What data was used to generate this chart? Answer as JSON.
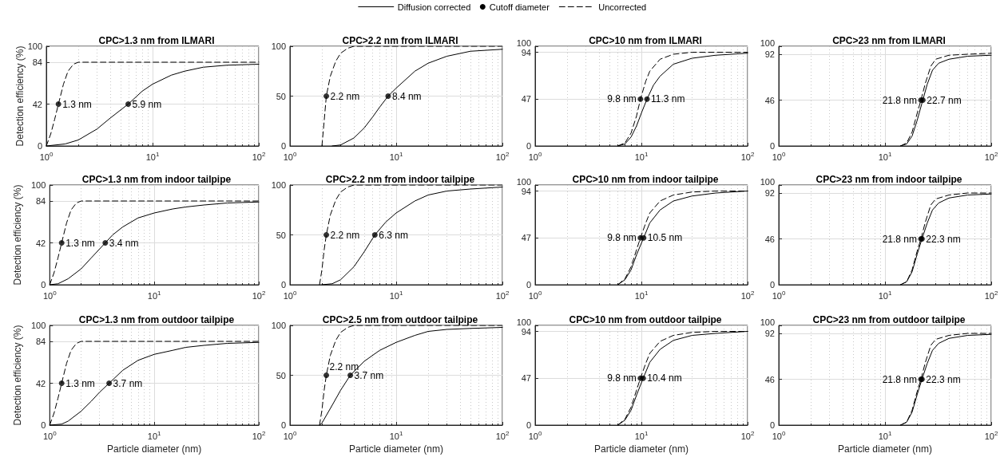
{
  "chart_data": [
    {
      "type": "line",
      "title": "CPC>1.3 nm from ILMARI",
      "ylabel": "Detection efficiency (%)",
      "log": "x",
      "xlim": [
        1,
        100
      ],
      "xticks": [
        {
          "value": 1,
          "label": "10$^{0}$"
        },
        {
          "value": 2,
          "label": null
        },
        {
          "value": 3,
          "label": null
        },
        {
          "value": 4,
          "label": null
        },
        {
          "value": 5,
          "label": null
        },
        {
          "value": 6,
          "label": null
        },
        {
          "value": 7,
          "label": null
        },
        {
          "value": 8,
          "label": null
        },
        {
          "value": 9,
          "label": null
        },
        {
          "value": 10,
          "label": "10$^{1}$"
        },
        {
          "value": 20,
          "label": null
        },
        {
          "value": 30,
          "label": null
        },
        {
          "value": 40,
          "label": null
        },
        {
          "value": 50,
          "label": null
        },
        {
          "value": 60,
          "label": null
        },
        {
          "value": 70,
          "label": null
        },
        {
          "value": 80,
          "label": null
        },
        {
          "value": 90,
          "label": null
        },
        {
          "value": 100,
          "label": "10$^{2}$"
        }
      ],
      "ylim": [
        0,
        100
      ],
      "yticks": [
        0,
        42,
        84,
        100
      ],
      "grid": true,
      "legend": "top",
      "annotations": [
        {
          "text": "1.3 nm",
          "x": 1.3,
          "y": 42
        },
        {
          "text": "5.9 nm",
          "x": 5.9,
          "y": 42
        }
      ],
      "series": [
        {
          "name": "Diffusion corrected",
          "type": "line",
          "color": "#000000",
          "line_style": "solid",
          "marker": "none",
          "x": [
            1,
            1.5,
            2,
            3,
            4,
            5.9,
            8,
            10,
            15,
            20,
            30,
            50,
            100
          ],
          "values": [
            0,
            2,
            6,
            17,
            28,
            42,
            55,
            62,
            71,
            75,
            79,
            81,
            82
          ]
        },
        {
          "name": "Cutoff diameter",
          "type": "scatter",
          "color": "#000000",
          "marker": "circle",
          "x": [
            1.3,
            5.9
          ],
          "values": [
            42,
            42
          ]
        },
        {
          "name": "Uncorrected",
          "type": "line",
          "color": "#000000",
          "line_style": "dashed",
          "marker": "none",
          "x": [
            1,
            1.1,
            1.2,
            1.3,
            1.45,
            1.6,
            1.8,
            2,
            3,
            10,
            100
          ],
          "values": [
            0,
            12,
            27,
            42,
            62,
            75,
            82,
            84,
            84,
            84,
            84
          ]
        }
      ]
    },
    {
      "type": "line",
      "title": "CPC>2.2 nm from ILMARI",
      "log": "x",
      "xlim": [
        1,
        100
      ],
      "xticks": [
        {
          "value": 1,
          "label": "10$^{0}$"
        },
        {
          "value": 2,
          "label": null
        },
        {
          "value": 3,
          "label": null
        },
        {
          "value": 4,
          "label": null
        },
        {
          "value": 5,
          "label": null
        },
        {
          "value": 6,
          "label": null
        },
        {
          "value": 7,
          "label": null
        },
        {
          "value": 8,
          "label": null
        },
        {
          "value": 9,
          "label": null
        },
        {
          "value": 10,
          "label": "10$^{1}$"
        },
        {
          "value": 20,
          "label": null
        },
        {
          "value": 30,
          "label": null
        },
        {
          "value": 40,
          "label": null
        },
        {
          "value": 50,
          "label": null
        },
        {
          "value": 60,
          "label": null
        },
        {
          "value": 70,
          "label": null
        },
        {
          "value": 80,
          "label": null
        },
        {
          "value": 90,
          "label": null
        },
        {
          "value": 100,
          "label": "10$^{2}$"
        }
      ],
      "ylim": [
        0,
        100
      ],
      "yticks": [
        0,
        50,
        100
      ],
      "grid": true,
      "annotations": [
        {
          "text": "2.2 nm",
          "x": 2.2,
          "y": 50
        },
        {
          "text": "8.4 nm",
          "x": 8.4,
          "y": 50
        }
      ],
      "series": [
        {
          "type": "line",
          "color": "#000000",
          "line_style": "solid",
          "marker": "none",
          "x": [
            2.5,
            3,
            4,
            5,
            6,
            7,
            8.4,
            10,
            15,
            20,
            30,
            50,
            100
          ],
          "values": [
            0,
            1,
            8,
            18,
            29,
            39,
            50,
            58,
            75,
            83,
            90,
            95,
            97
          ]
        },
        {
          "type": "scatter",
          "color": "#000000",
          "marker": "circle",
          "x": [
            2.2,
            8.4
          ],
          "values": [
            50,
            50
          ]
        },
        {
          "type": "line",
          "color": "#000000",
          "line_style": "dashed",
          "marker": "none",
          "x": [
            2,
            2.1,
            2.2,
            2.4,
            2.7,
            3,
            3.5,
            4,
            100
          ],
          "values": [
            0,
            25,
            50,
            70,
            85,
            93,
            98,
            100,
            100
          ]
        }
      ]
    },
    {
      "type": "line",
      "title": "CPC>10 nm from ILMARI",
      "log": "x",
      "xlim": [
        1,
        100
      ],
      "xticks": [
        {
          "value": 1,
          "label": "10$^{0}$"
        },
        {
          "value": 2,
          "label": null
        },
        {
          "value": 3,
          "label": null
        },
        {
          "value": 4,
          "label": null
        },
        {
          "value": 5,
          "label": null
        },
        {
          "value": 6,
          "label": null
        },
        {
          "value": 7,
          "label": null
        },
        {
          "value": 8,
          "label": null
        },
        {
          "value": 9,
          "label": null
        },
        {
          "value": 10,
          "label": "10$^{1}$"
        },
        {
          "value": 20,
          "label": null
        },
        {
          "value": 30,
          "label": null
        },
        {
          "value": 40,
          "label": null
        },
        {
          "value": 50,
          "label": null
        },
        {
          "value": 60,
          "label": null
        },
        {
          "value": 70,
          "label": null
        },
        {
          "value": 80,
          "label": null
        },
        {
          "value": 90,
          "label": null
        },
        {
          "value": 100,
          "label": "10$^{2}$"
        }
      ],
      "ylim": [
        0,
        100
      ],
      "yticks": [
        0,
        47,
        94,
        100
      ],
      "grid": true,
      "annotations": [
        {
          "text": "9.8 nm",
          "x": 9.8,
          "y": 47
        },
        {
          "text": "11.3 nm",
          "x": 11.3,
          "y": 47
        }
      ],
      "series": [
        {
          "type": "line",
          "color": "#000000",
          "line_style": "solid",
          "marker": "none",
          "x": [
            6,
            7,
            8,
            9,
            10,
            11.3,
            13,
            15,
            20,
            30,
            50,
            100
          ],
          "values": [
            0,
            2,
            9,
            20,
            33,
            47,
            61,
            70,
            82,
            88,
            91,
            93
          ]
        },
        {
          "type": "scatter",
          "color": "#000000",
          "marker": "circle",
          "x": [
            9.8,
            11.3
          ],
          "values": [
            47,
            47
          ]
        },
        {
          "type": "line",
          "color": "#000000",
          "line_style": "dashed",
          "marker": "none",
          "x": [
            6,
            7,
            8,
            9,
            9.8,
            11,
            12,
            15,
            20,
            30,
            50,
            100
          ],
          "values": [
            0,
            3,
            13,
            30,
            47,
            65,
            75,
            87,
            92,
            94,
            94,
            94
          ]
        }
      ]
    },
    {
      "type": "line",
      "title": "CPC>23 nm from ILMARI",
      "log": "x",
      "xlim": [
        1,
        100
      ],
      "xticks": [
        {
          "value": 1,
          "label": "10$^{0}$"
        },
        {
          "value": 2,
          "label": null
        },
        {
          "value": 3,
          "label": null
        },
        {
          "value": 4,
          "label": null
        },
        {
          "value": 5,
          "label": null
        },
        {
          "value": 6,
          "label": null
        },
        {
          "value": 7,
          "label": null
        },
        {
          "value": 8,
          "label": null
        },
        {
          "value": 9,
          "label": null
        },
        {
          "value": 10,
          "label": "10$^{1}$"
        },
        {
          "value": 20,
          "label": null
        },
        {
          "value": 30,
          "label": null
        },
        {
          "value": 40,
          "label": null
        },
        {
          "value": 50,
          "label": null
        },
        {
          "value": 60,
          "label": null
        },
        {
          "value": 70,
          "label": null
        },
        {
          "value": 80,
          "label": null
        },
        {
          "value": 90,
          "label": null
        },
        {
          "value": 100,
          "label": "10$^{2}$"
        }
      ],
      "ylim": [
        0,
        100
      ],
      "yticks": [
        0,
        46,
        92,
        100
      ],
      "grid": true,
      "annotations": [
        {
          "text": "21.8 nm",
          "x": 21.8,
          "y": 46
        },
        {
          "text": "22.7 nm",
          "x": 22.7,
          "y": 46
        }
      ],
      "series": [
        {
          "type": "line",
          "color": "#000000",
          "line_style": "solid",
          "marker": "none",
          "x": [
            14,
            16,
            18,
            20,
            22.7,
            25,
            28,
            32,
            40,
            60,
            100
          ],
          "values": [
            0,
            2,
            10,
            25,
            46,
            62,
            76,
            83,
            87,
            90,
            91
          ]
        },
        {
          "type": "scatter",
          "color": "#000000",
          "marker": "circle",
          "x": [
            21.8,
            22.7
          ],
          "values": [
            46,
            46
          ]
        },
        {
          "type": "line",
          "color": "#000000",
          "line_style": "dashed",
          "marker": "none",
          "x": [
            14,
            16,
            18,
            20,
            21.8,
            24,
            27,
            30,
            40,
            60,
            100
          ],
          "values": [
            0,
            3,
            14,
            32,
            46,
            63,
            80,
            87,
            91,
            92,
            93
          ]
        }
      ]
    },
    {
      "type": "line",
      "title": "CPC>1.3 nm from indoor tailpipe",
      "ylabel": "Detection efficiency (%)",
      "log": "x",
      "xlim": [
        1,
        100
      ],
      "xticks": [
        {
          "value": 1,
          "label": "10$^{0}$"
        },
        {
          "value": 2,
          "label": null
        },
        {
          "value": 3,
          "label": null
        },
        {
          "value": 4,
          "label": null
        },
        {
          "value": 5,
          "label": null
        },
        {
          "value": 6,
          "label": null
        },
        {
          "value": 7,
          "label": null
        },
        {
          "value": 8,
          "label": null
        },
        {
          "value": 9,
          "label": null
        },
        {
          "value": 10,
          "label": "10$^{1}$"
        },
        {
          "value": 20,
          "label": null
        },
        {
          "value": 30,
          "label": null
        },
        {
          "value": 40,
          "label": null
        },
        {
          "value": 50,
          "label": null
        },
        {
          "value": 60,
          "label": null
        },
        {
          "value": 70,
          "label": null
        },
        {
          "value": 80,
          "label": null
        },
        {
          "value": 90,
          "label": null
        },
        {
          "value": 100,
          "label": "10$^{2}$"
        }
      ],
      "ylim": [
        0,
        100
      ],
      "yticks": [
        0,
        42,
        84,
        100
      ],
      "grid": true,
      "annotations": [
        {
          "text": "1.3 nm",
          "x": 1.3,
          "y": 42
        },
        {
          "text": "3.4 nm",
          "x": 3.4,
          "y": 42
        }
      ],
      "series": [
        {
          "type": "line",
          "color": "#000000",
          "line_style": "solid",
          "marker": "none",
          "x": [
            1,
            1.2,
            1.5,
            2,
            2.5,
            3.4,
            4,
            5,
            7,
            10,
            15,
            20,
            30,
            50,
            100
          ],
          "values": [
            0,
            1,
            6,
            16,
            27,
            42,
            50,
            58,
            67,
            72,
            76,
            78,
            80,
            82,
            83
          ]
        },
        {
          "type": "scatter",
          "color": "#000000",
          "marker": "circle",
          "x": [
            1.3,
            3.4
          ],
          "values": [
            42,
            42
          ]
        },
        {
          "type": "line",
          "color": "#000000",
          "line_style": "dashed",
          "marker": "none",
          "x": [
            1,
            1.1,
            1.2,
            1.3,
            1.45,
            1.6,
            1.8,
            2,
            3,
            10,
            100
          ],
          "values": [
            0,
            12,
            27,
            42,
            62,
            75,
            82,
            84,
            84,
            84,
            84
          ]
        }
      ]
    },
    {
      "type": "line",
      "title": "CPC>2.2 nm from indoor tailpipe",
      "log": "x",
      "xlim": [
        1,
        100
      ],
      "xticks": [
        {
          "value": 1,
          "label": "10$^{0}$"
        },
        {
          "value": 2,
          "label": null
        },
        {
          "value": 3,
          "label": null
        },
        {
          "value": 4,
          "label": null
        },
        {
          "value": 5,
          "label": null
        },
        {
          "value": 6,
          "label": null
        },
        {
          "value": 7,
          "label": null
        },
        {
          "value": 8,
          "label": null
        },
        {
          "value": 9,
          "label": null
        },
        {
          "value": 10,
          "label": "10$^{1}$"
        },
        {
          "value": 20,
          "label": null
        },
        {
          "value": 30,
          "label": null
        },
        {
          "value": 40,
          "label": null
        },
        {
          "value": 50,
          "label": null
        },
        {
          "value": 60,
          "label": null
        },
        {
          "value": 70,
          "label": null
        },
        {
          "value": 80,
          "label": null
        },
        {
          "value": 90,
          "label": null
        },
        {
          "value": 100,
          "label": "10$^{2}$"
        }
      ],
      "ylim": [
        0,
        100
      ],
      "yticks": [
        0,
        50,
        100
      ],
      "grid": true,
      "annotations": [
        {
          "text": "2.2 nm",
          "x": 2.2,
          "y": 50
        },
        {
          "text": "6.3 nm",
          "x": 6.3,
          "y": 50
        }
      ],
      "series": [
        {
          "type": "line",
          "color": "#000000",
          "line_style": "solid",
          "marker": "none",
          "x": [
            2,
            2.5,
            3,
            4,
            5,
            6.3,
            8,
            10,
            15,
            20,
            30,
            50,
            100
          ],
          "values": [
            0,
            1,
            5,
            18,
            33,
            50,
            63,
            72,
            84,
            90,
            94,
            96,
            98
          ]
        },
        {
          "type": "scatter",
          "color": "#000000",
          "marker": "circle",
          "x": [
            2.2,
            6.3
          ],
          "values": [
            50,
            50
          ]
        },
        {
          "type": "line",
          "color": "#000000",
          "line_style": "dashed",
          "marker": "none",
          "x": [
            1.9,
            2,
            2.1,
            2.2,
            2.4,
            2.7,
            3,
            3.5,
            4,
            100
          ],
          "values": [
            0,
            15,
            35,
            50,
            70,
            85,
            93,
            98,
            100,
            100
          ]
        }
      ]
    },
    {
      "type": "line",
      "title": "CPC>10 nm from indoor tailpipe",
      "log": "x",
      "xlim": [
        1,
        100
      ],
      "xticks": [
        {
          "value": 1,
          "label": "10$^{0}$"
        },
        {
          "value": 2,
          "label": null
        },
        {
          "value": 3,
          "label": null
        },
        {
          "value": 4,
          "label": null
        },
        {
          "value": 5,
          "label": null
        },
        {
          "value": 6,
          "label": null
        },
        {
          "value": 7,
          "label": null
        },
        {
          "value": 8,
          "label": null
        },
        {
          "value": 9,
          "label": null
        },
        {
          "value": 10,
          "label": "10$^{1}$"
        },
        {
          "value": 20,
          "label": null
        },
        {
          "value": 30,
          "label": null
        },
        {
          "value": 40,
          "label": null
        },
        {
          "value": 50,
          "label": null
        },
        {
          "value": 60,
          "label": null
        },
        {
          "value": 70,
          "label": null
        },
        {
          "value": 80,
          "label": null
        },
        {
          "value": 90,
          "label": null
        },
        {
          "value": 100,
          "label": "10$^{2}$"
        }
      ],
      "ylim": [
        0,
        100
      ],
      "yticks": [
        0,
        47,
        94,
        100
      ],
      "grid": true,
      "annotations": [
        {
          "text": "9.8 nm",
          "x": 9.8,
          "y": 47
        },
        {
          "text": "10.5 nm",
          "x": 10.5,
          "y": 47
        }
      ],
      "series": [
        {
          "type": "line",
          "color": "#000000",
          "line_style": "solid",
          "marker": "none",
          "x": [
            6,
            7,
            8,
            9,
            10.5,
            12,
            15,
            20,
            30,
            50,
            100
          ],
          "values": [
            0,
            5,
            15,
            30,
            47,
            62,
            75,
            84,
            89,
            92,
            94
          ]
        },
        {
          "type": "scatter",
          "color": "#000000",
          "marker": "circle",
          "x": [
            9.8,
            10.5
          ],
          "values": [
            47,
            47
          ]
        },
        {
          "type": "line",
          "color": "#000000",
          "line_style": "dashed",
          "marker": "none",
          "x": [
            6,
            7,
            8,
            9,
            9.8,
            11,
            12,
            15,
            20,
            30,
            50,
            100
          ],
          "values": [
            0,
            6,
            18,
            35,
            47,
            62,
            72,
            84,
            90,
            93,
            94,
            94
          ]
        }
      ]
    },
    {
      "type": "line",
      "title": "CPC>23 nm from indoor tailpipe",
      "log": "x",
      "xlim": [
        1,
        100
      ],
      "xticks": [
        {
          "value": 1,
          "label": "10$^{0}$"
        },
        {
          "value": 2,
          "label": null
        },
        {
          "value": 3,
          "label": null
        },
        {
          "value": 4,
          "label": null
        },
        {
          "value": 5,
          "label": null
        },
        {
          "value": 6,
          "label": null
        },
        {
          "value": 7,
          "label": null
        },
        {
          "value": 8,
          "label": null
        },
        {
          "value": 9,
          "label": null
        },
        {
          "value": 10,
          "label": "10$^{1}$"
        },
        {
          "value": 20,
          "label": null
        },
        {
          "value": 30,
          "label": null
        },
        {
          "value": 40,
          "label": null
        },
        {
          "value": 50,
          "label": null
        },
        {
          "value": 60,
          "label": null
        },
        {
          "value": 70,
          "label": null
        },
        {
          "value": 80,
          "label": null
        },
        {
          "value": 90,
          "label": null
        },
        {
          "value": 100,
          "label": "10$^{2}$"
        }
      ],
      "ylim": [
        0,
        100
      ],
      "yticks": [
        0,
        46,
        92,
        100
      ],
      "grid": true,
      "annotations": [
        {
          "text": "21.8 nm",
          "x": 21.8,
          "y": 46
        },
        {
          "text": "22.3 nm",
          "x": 22.3,
          "y": 46
        }
      ],
      "series": [
        {
          "type": "line",
          "color": "#000000",
          "line_style": "solid",
          "marker": "none",
          "x": [
            14,
            16,
            18,
            20,
            22.3,
            25,
            28,
            32,
            40,
            60,
            100
          ],
          "values": [
            0,
            3,
            13,
            30,
            46,
            62,
            75,
            82,
            87,
            90,
            91
          ]
        },
        {
          "type": "scatter",
          "color": "#000000",
          "marker": "circle",
          "x": [
            21.8,
            22.3
          ],
          "values": [
            46,
            46
          ]
        },
        {
          "type": "line",
          "color": "#000000",
          "line_style": "dashed",
          "marker": "none",
          "x": [
            14,
            16,
            18,
            20,
            21.8,
            24,
            27,
            30,
            40,
            60,
            100
          ],
          "values": [
            0,
            3,
            15,
            33,
            46,
            63,
            80,
            86,
            90,
            92,
            92
          ]
        }
      ]
    },
    {
      "type": "line",
      "title": "CPC>1.3 nm from outdoor tailpipe",
      "xlabel": "Particle diameter (nm)",
      "ylabel": "Detection efficiency (%)",
      "log": "x",
      "xlim": [
        1,
        100
      ],
      "xticks": [
        {
          "value": 1,
          "label": "10$^{0}$"
        },
        {
          "value": 2,
          "label": null
        },
        {
          "value": 3,
          "label": null
        },
        {
          "value": 4,
          "label": null
        },
        {
          "value": 5,
          "label": null
        },
        {
          "value": 6,
          "label": null
        },
        {
          "value": 7,
          "label": null
        },
        {
          "value": 8,
          "label": null
        },
        {
          "value": 9,
          "label": null
        },
        {
          "value": 10,
          "label": "10$^{1}$"
        },
        {
          "value": 20,
          "label": null
        },
        {
          "value": 30,
          "label": null
        },
        {
          "value": 40,
          "label": null
        },
        {
          "value": 50,
          "label": null
        },
        {
          "value": 60,
          "label": null
        },
        {
          "value": 70,
          "label": null
        },
        {
          "value": 80,
          "label": null
        },
        {
          "value": 90,
          "label": null
        },
        {
          "value": 100,
          "label": "10$^{2}$"
        }
      ],
      "ylim": [
        0,
        100
      ],
      "yticks": [
        0,
        42,
        84,
        100
      ],
      "grid": true,
      "annotations": [
        {
          "text": "1.3 nm",
          "x": 1.3,
          "y": 42
        },
        {
          "text": "3.7 nm",
          "x": 3.7,
          "y": 42
        }
      ],
      "series": [
        {
          "type": "line",
          "color": "#000000",
          "line_style": "solid",
          "marker": "none",
          "x": [
            1,
            1.3,
            1.5,
            2,
            2.5,
            3,
            3.7,
            5,
            7,
            10,
            15,
            20,
            30,
            50,
            100
          ],
          "values": [
            0,
            1,
            4,
            14,
            24,
            33,
            42,
            55,
            65,
            71,
            75,
            78,
            80,
            82,
            83
          ]
        },
        {
          "type": "scatter",
          "color": "#000000",
          "marker": "circle",
          "x": [
            1.3,
            3.7
          ],
          "values": [
            42,
            42
          ]
        },
        {
          "type": "line",
          "color": "#000000",
          "line_style": "dashed",
          "marker": "none",
          "x": [
            1,
            1.1,
            1.2,
            1.3,
            1.45,
            1.6,
            1.8,
            2,
            3,
            10,
            100
          ],
          "values": [
            0,
            12,
            27,
            42,
            62,
            75,
            82,
            84,
            84,
            84,
            84
          ]
        }
      ]
    },
    {
      "type": "line",
      "title": "CPC>2.5 nm from outdoor tailpipe",
      "xlabel": "Particle diameter (nm)",
      "log": "x",
      "xlim": [
        1,
        100
      ],
      "xticks": [
        {
          "value": 1,
          "label": "10$^{0}$"
        },
        {
          "value": 2,
          "label": null
        },
        {
          "value": 3,
          "label": null
        },
        {
          "value": 4,
          "label": null
        },
        {
          "value": 5,
          "label": null
        },
        {
          "value": 6,
          "label": null
        },
        {
          "value": 7,
          "label": null
        },
        {
          "value": 8,
          "label": null
        },
        {
          "value": 9,
          "label": null
        },
        {
          "value": 10,
          "label": "10$^{1}$"
        },
        {
          "value": 20,
          "label": null
        },
        {
          "value": 30,
          "label": null
        },
        {
          "value": 40,
          "label": null
        },
        {
          "value": 50,
          "label": null
        },
        {
          "value": 60,
          "label": null
        },
        {
          "value": 70,
          "label": null
        },
        {
          "value": 80,
          "label": null
        },
        {
          "value": 90,
          "label": null
        },
        {
          "value": 100,
          "label": "10$^{2}$"
        }
      ],
      "ylim": [
        0,
        100
      ],
      "yticks": [
        0,
        50,
        100
      ],
      "grid": true,
      "annotations": [
        {
          "text": "2.2 nm",
          "x": 2.2,
          "y": 50
        },
        {
          "text": "3.7 nm",
          "x": 3.7,
          "y": 50
        }
      ],
      "series": [
        {
          "type": "line",
          "color": "#000000",
          "line_style": "solid",
          "marker": "none",
          "x": [
            1.9,
            2,
            2.5,
            3,
            3.7,
            5,
            7,
            10,
            15,
            20,
            30,
            50,
            100
          ],
          "values": [
            0,
            2,
            20,
            35,
            50,
            64,
            75,
            83,
            90,
            94,
            96,
            97,
            98
          ]
        },
        {
          "type": "scatter",
          "color": "#000000",
          "marker": "circle",
          "x": [
            2.2,
            3.7
          ],
          "values": [
            50,
            50
          ]
        },
        {
          "type": "line",
          "color": "#000000",
          "line_style": "dashed",
          "marker": "none",
          "x": [
            1.9,
            2,
            2.1,
            2.2,
            2.4,
            2.7,
            3,
            3.5,
            4,
            100
          ],
          "values": [
            0,
            15,
            35,
            50,
            70,
            85,
            93,
            98,
            100,
            100
          ]
        }
      ]
    },
    {
      "type": "line",
      "title": "CPC>10 nm from outdoor tailpipe",
      "xlabel": "Particle diameter (nm)",
      "log": "x",
      "xlim": [
        1,
        100
      ],
      "xticks": [
        {
          "value": 1,
          "label": "10$^{0}$"
        },
        {
          "value": 2,
          "label": null
        },
        {
          "value": 3,
          "label": null
        },
        {
          "value": 4,
          "label": null
        },
        {
          "value": 5,
          "label": null
        },
        {
          "value": 6,
          "label": null
        },
        {
          "value": 7,
          "label": null
        },
        {
          "value": 8,
          "label": null
        },
        {
          "value": 9,
          "label": null
        },
        {
          "value": 10,
          "label": "10$^{1}$"
        },
        {
          "value": 20,
          "label": null
        },
        {
          "value": 30,
          "label": null
        },
        {
          "value": 40,
          "label": null
        },
        {
          "value": 50,
          "label": null
        },
        {
          "value": 60,
          "label": null
        },
        {
          "value": 70,
          "label": null
        },
        {
          "value": 80,
          "label": null
        },
        {
          "value": 90,
          "label": null
        },
        {
          "value": 100,
          "label": "10$^{2}$"
        }
      ],
      "ylim": [
        0,
        100
      ],
      "yticks": [
        0,
        47,
        94,
        100
      ],
      "grid": true,
      "annotations": [
        {
          "text": "9.8 nm",
          "x": 9.8,
          "y": 47
        },
        {
          "text": "10.4 nm",
          "x": 10.4,
          "y": 47
        }
      ],
      "series": [
        {
          "type": "line",
          "color": "#000000",
          "line_style": "solid",
          "marker": "none",
          "x": [
            6,
            7,
            8,
            9,
            10.4,
            12,
            15,
            20,
            30,
            50,
            100
          ],
          "values": [
            0,
            5,
            15,
            30,
            47,
            63,
            76,
            85,
            90,
            92,
            94
          ]
        },
        {
          "type": "scatter",
          "color": "#000000",
          "marker": "circle",
          "x": [
            9.8,
            10.4
          ],
          "values": [
            47,
            47
          ]
        },
        {
          "type": "line",
          "color": "#000000",
          "line_style": "dashed",
          "marker": "none",
          "x": [
            6,
            7,
            8,
            9,
            9.8,
            11,
            12,
            15,
            20,
            30,
            50,
            100
          ],
          "values": [
            0,
            6,
            18,
            35,
            47,
            62,
            72,
            84,
            90,
            93,
            94,
            94
          ]
        }
      ]
    },
    {
      "type": "line",
      "title": "CPC>23 nm from outdoor tailpipe",
      "xlabel": "Particle diameter (nm)",
      "log": "x",
      "xlim": [
        1,
        100
      ],
      "xticks": [
        {
          "value": 1,
          "label": "10$^{0}$"
        },
        {
          "value": 2,
          "label": null
        },
        {
          "value": 3,
          "label": null
        },
        {
          "value": 4,
          "label": null
        },
        {
          "value": 5,
          "label": null
        },
        {
          "value": 6,
          "label": null
        },
        {
          "value": 7,
          "label": null
        },
        {
          "value": 8,
          "label": null
        },
        {
          "value": 9,
          "label": null
        },
        {
          "value": 10,
          "label": "10$^{1}$"
        },
        {
          "value": 20,
          "label": null
        },
        {
          "value": 30,
          "label": null
        },
        {
          "value": 40,
          "label": null
        },
        {
          "value": 50,
          "label": null
        },
        {
          "value": 60,
          "label": null
        },
        {
          "value": 70,
          "label": null
        },
        {
          "value": 80,
          "label": null
        },
        {
          "value": 90,
          "label": null
        },
        {
          "value": 100,
          "label": "10$^{2}$"
        }
      ],
      "ylim": [
        0,
        100
      ],
      "yticks": [
        0,
        46,
        92,
        100
      ],
      "grid": true,
      "annotations": [
        {
          "text": "21.8 nm",
          "x": 21.8,
          "y": 46
        },
        {
          "text": "22.3 nm",
          "x": 22.3,
          "y": 46
        }
      ],
      "series": [
        {
          "type": "line",
          "color": "#000000",
          "line_style": "solid",
          "marker": "none",
          "x": [
            14,
            16,
            18,
            20,
            22.3,
            25,
            28,
            32,
            40,
            60,
            100
          ],
          "values": [
            0,
            3,
            13,
            30,
            46,
            62,
            75,
            82,
            87,
            90,
            91
          ]
        },
        {
          "type": "scatter",
          "color": "#000000",
          "marker": "circle",
          "x": [
            21.8,
            22.3
          ],
          "values": [
            46,
            46
          ]
        },
        {
          "type": "line",
          "color": "#000000",
          "line_style": "dashed",
          "marker": "none",
          "x": [
            14,
            16,
            18,
            20,
            21.8,
            24,
            27,
            30,
            40,
            60,
            100
          ],
          "values": [
            0,
            3,
            15,
            33,
            46,
            63,
            80,
            86,
            90,
            92,
            92
          ]
        }
      ]
    }
  ]
}
